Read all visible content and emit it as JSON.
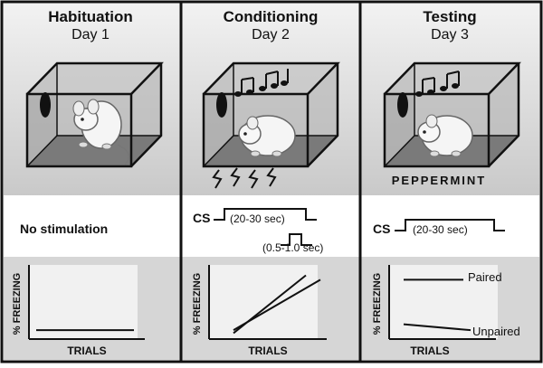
{
  "panels": [
    {
      "id": "habituation",
      "title": "Habituation",
      "day": "Day 1",
      "stimulus_text": "No stimulation",
      "graph": {
        "y_label": "% FREEZING",
        "x_label": "TRIALS",
        "series": [
          {
            "label": "",
            "start": 0.12,
            "end": 0.12
          }
        ]
      }
    },
    {
      "id": "conditioning",
      "title": "Conditioning",
      "day": "Day 2",
      "cs_label": "CS",
      "cs_duration": "(20-30 sec)",
      "us_duration": "(0.5-1.0 sec)",
      "graph": {
        "y_label": "% FREEZING",
        "x_label": "TRIALS",
        "series": [
          {
            "label": "",
            "start": 0.08,
            "end": 0.86
          },
          {
            "label": "",
            "start": 0.12,
            "end": 0.8
          }
        ]
      }
    },
    {
      "id": "testing",
      "title": "Testing",
      "day": "Day 3",
      "context_label": "PEPPERMINT",
      "cs_label": "CS",
      "cs_duration": "(20-30 sec)",
      "graph": {
        "y_label": "% FREEZING",
        "x_label": "TRIALS",
        "series": [
          {
            "label": "Paired",
            "start": 0.8,
            "end": 0.8
          },
          {
            "label": "Unpaired",
            "start": 0.2,
            "end": 0.12
          }
        ]
      }
    }
  ],
  "colors": {
    "shade": "#d6d6d6",
    "box_floor": "#7a7a7a",
    "box_wall": "#b5b5b5",
    "ink": "#111111"
  }
}
